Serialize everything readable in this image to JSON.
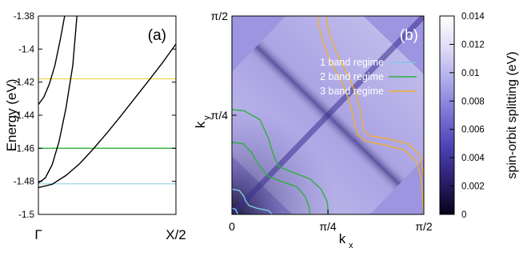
{
  "chart_data": [
    {
      "type": "line",
      "panel_label": "(a)",
      "ylabel": "Energy (eV)",
      "ylim": [
        -1.5,
        -1.38
      ],
      "yticks": [
        -1.5,
        -1.48,
        -1.46,
        -1.44,
        -1.42,
        -1.4,
        -1.38
      ],
      "ytick_labels": [
        "-1.5",
        "-1.48",
        "-1.46",
        "-1.44",
        "-1.42",
        "-1.4",
        "-1.38"
      ],
      "xticks": [
        0,
        1
      ],
      "xtick_labels": [
        "Γ",
        "X/2"
      ],
      "xlim": [
        0,
        1
      ],
      "grid": false,
      "series": [
        {
          "color": "#000000",
          "x": [
            0,
            0.1,
            0.2,
            0.3,
            0.4,
            0.5,
            0.6,
            0.7,
            0.8,
            0.9,
            1.0
          ],
          "y": [
            -1.4838,
            -1.4818,
            -1.4765,
            -1.4693,
            -1.4603,
            -1.4506,
            -1.4404,
            -1.4298,
            -1.4193,
            -1.4085,
            -1.397
          ]
        },
        {
          "color": "#000000",
          "x": [
            0,
            0.05,
            0.1,
            0.15,
            0.2,
            0.25,
            0.28
          ],
          "y": [
            -1.481,
            -1.478,
            -1.47,
            -1.456,
            -1.436,
            -1.41,
            -1.38
          ]
        },
        {
          "color": "#000000",
          "x": [
            0,
            0.04,
            0.08,
            0.12,
            0.16,
            0.2,
            0.23
          ],
          "y": [
            -1.4335,
            -1.429,
            -1.421,
            -1.41,
            -1.394,
            -1.376,
            -1.36
          ]
        }
      ],
      "hlines": [
        {
          "y": -1.418,
          "color": "#e8d84a",
          "label": "3 band regime"
        },
        {
          "y": -1.46,
          "color": "#2fb03a",
          "label": "2 band regime"
        },
        {
          "y": -1.4815,
          "color": "#9ed4e6",
          "label": "1 band regime"
        }
      ]
    },
    {
      "type": "heatmap",
      "panel_label": "(b)",
      "xlabel": "kx",
      "ylabel": "ky",
      "xlim": [
        0,
        1.5708
      ],
      "ylim": [
        0,
        1.5708
      ],
      "xtick_labels": [
        "0",
        "π/4",
        "π/2"
      ],
      "ytick_labels": [
        "π/4",
        "π/2"
      ],
      "colorbar": {
        "label": "spin-orbit splitting (eV)",
        "range": [
          0,
          0.014
        ],
        "tick_labels": [
          "0",
          "0.002",
          "0.004",
          "0.006",
          "0.008",
          "0.01",
          "0.012",
          "0.014"
        ],
        "colors": [
          "#050318",
          "#2a1e6b",
          "#4b40b3",
          "#7a71d4",
          "#ada8e8",
          "#dcdaf6",
          "#ffffff"
        ]
      },
      "legend": {
        "placement": "top-right",
        "entries": [
          {
            "label": "1 band regime",
            "color": "#7fc8e6"
          },
          {
            "label": "2 band regime",
            "color": "#2fb03a"
          },
          {
            "label": "3 band regime",
            "color": "#f0b030"
          }
        ]
      },
      "contours": [
        {
          "regime": "1 band regime",
          "color": "#7fc8e6",
          "points": [
            [
              0.0,
              0.2
            ],
            [
              0.06,
              0.19
            ],
            [
              0.1,
              0.14
            ],
            [
              0.11,
              0.11
            ],
            [
              0.14,
              0.07
            ],
            [
              0.2,
              0.05
            ],
            [
              0.3,
              0.03
            ],
            [
              0.33,
              0.0
            ]
          ]
        },
        {
          "regime": "1 band regime",
          "color": "#7fc8e6",
          "points": [
            [
              0.0,
              0.05
            ],
            [
              0.03,
              0.04
            ],
            [
              0.05,
              0.0
            ]
          ]
        },
        {
          "regime": "2 band regime",
          "color": "#2fb03a",
          "points": [
            [
              0.0,
              0.83
            ],
            [
              0.1,
              0.82
            ],
            [
              0.23,
              0.75
            ],
            [
              0.3,
              0.6
            ],
            [
              0.34,
              0.47
            ],
            [
              0.38,
              0.38
            ],
            [
              0.48,
              0.34
            ],
            [
              0.64,
              0.28
            ],
            [
              0.73,
              0.2
            ],
            [
              0.78,
              0.1
            ],
            [
              0.79,
              0.0
            ]
          ]
        },
        {
          "regime": "2 band regime",
          "color": "#2fb03a",
          "points": [
            [
              0.0,
              0.57
            ],
            [
              0.09,
              0.56
            ],
            [
              0.16,
              0.49
            ],
            [
              0.22,
              0.39
            ],
            [
              0.3,
              0.3
            ],
            [
              0.41,
              0.26
            ],
            [
              0.53,
              0.22
            ],
            [
              0.6,
              0.14
            ],
            [
              0.63,
              0.06
            ],
            [
              0.64,
              0.0
            ]
          ]
        },
        {
          "regime": "3 band regime",
          "color": "#f0b030",
          "points": [
            [
              0.7,
              1.5708
            ],
            [
              0.73,
              1.42
            ],
            [
              0.8,
              1.22
            ],
            [
              0.9,
              1.05
            ],
            [
              0.96,
              0.9
            ],
            [
              1.0,
              0.75
            ],
            [
              1.03,
              0.63
            ],
            [
              1.09,
              0.58
            ],
            [
              1.25,
              0.55
            ],
            [
              1.41,
              0.51
            ],
            [
              1.51,
              0.42
            ],
            [
              1.55,
              0.28
            ],
            [
              1.5708,
              0.0
            ]
          ]
        },
        {
          "regime": "3 band regime",
          "color": "#f0b030",
          "points": [
            [
              0.77,
              1.5708
            ],
            [
              0.8,
              1.42
            ],
            [
              0.87,
              1.25
            ],
            [
              0.96,
              1.08
            ],
            [
              1.02,
              0.94
            ],
            [
              1.06,
              0.78
            ],
            [
              1.08,
              0.66
            ],
            [
              1.13,
              0.62
            ],
            [
              1.28,
              0.6
            ],
            [
              1.44,
              0.56
            ],
            [
              1.54,
              0.47
            ],
            [
              1.5708,
              0.3
            ]
          ]
        }
      ]
    }
  ]
}
